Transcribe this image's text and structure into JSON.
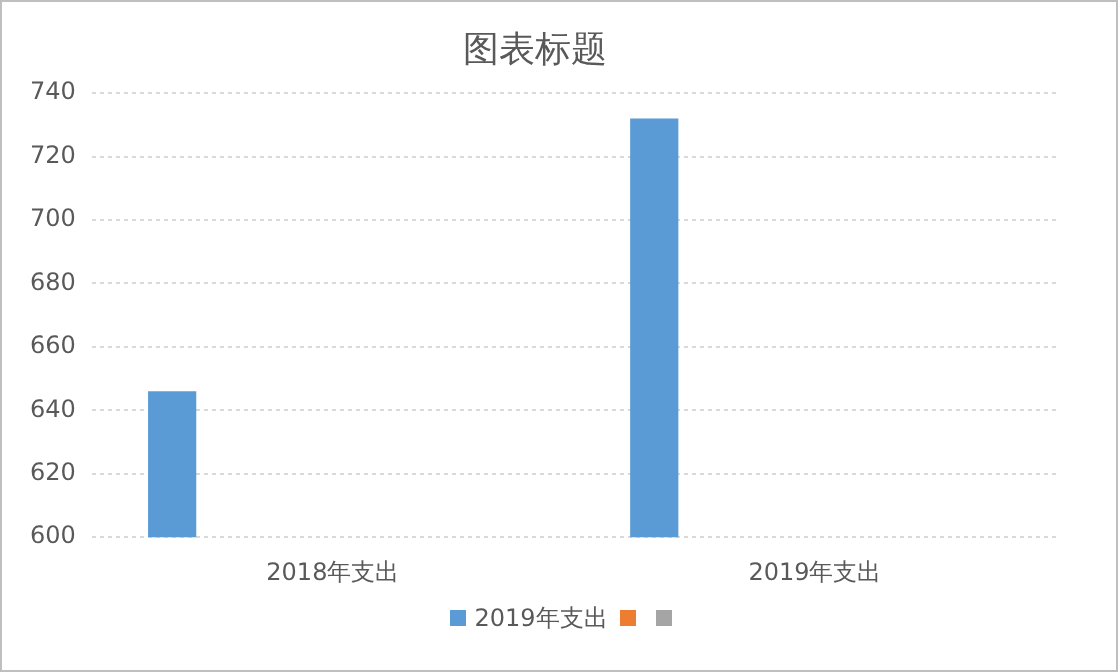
{
  "chart_data": {
    "type": "bar",
    "title": "图表标题",
    "categories": [
      "2018年支出",
      "2019年支出"
    ],
    "series": [
      {
        "name": "2019年支出",
        "color": "#5b9bd5",
        "values": [
          646,
          732
        ]
      },
      {
        "color": "#ed7d31",
        "values": [
          null,
          null
        ]
      },
      {
        "color": "#a5a5a5",
        "values": [
          null,
          null
        ]
      }
    ],
    "ylim": [
      600,
      740
    ],
    "yticks": [
      600,
      620,
      640,
      660,
      680,
      700,
      720,
      740
    ],
    "grid": "y",
    "legend": "bottom"
  }
}
